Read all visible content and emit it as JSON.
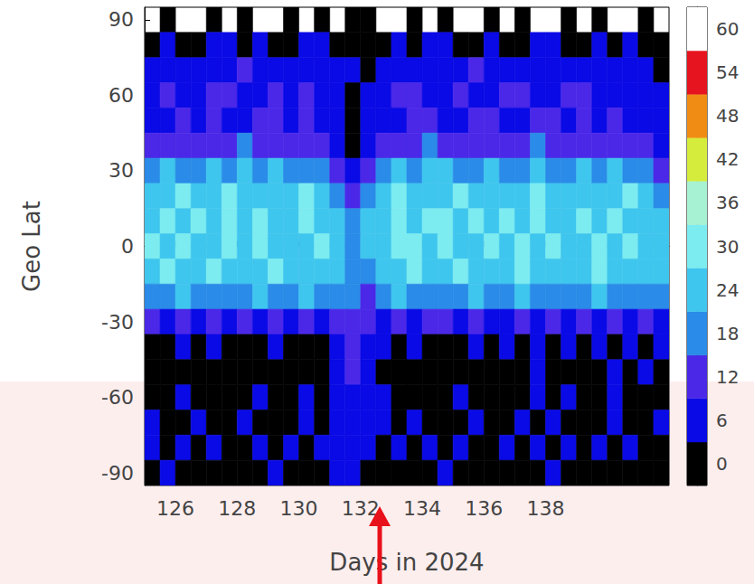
{
  "chart_data": {
    "type": "heatmap",
    "x_label": "Days in 2024",
    "y_label": "Geo Lat",
    "xlim": [
      125,
      142
    ],
    "xticks": [
      126,
      128,
      130,
      132,
      134,
      136,
      138
    ],
    "ylim": [
      -95,
      95
    ],
    "yticks": [
      -90,
      -60,
      -30,
      0,
      30,
      60,
      90
    ],
    "x": [
      125.25,
      125.75,
      126.25,
      126.75,
      127.25,
      127.75,
      128.25,
      128.75,
      129.25,
      129.75,
      130.25,
      130.75,
      131.25,
      131.75,
      132.25,
      132.75,
      133.25,
      133.75,
      134.25,
      134.75,
      135.25,
      135.75,
      136.25,
      136.75,
      137.25,
      137.75,
      138.25,
      138.75,
      139.25,
      139.75,
      140.25,
      140.75,
      141.25,
      141.75
    ],
    "lat": [
      90,
      80,
      70,
      60,
      50,
      40,
      30,
      20,
      10,
      0,
      -10,
      -20,
      -30,
      -40,
      -50,
      -60,
      -70,
      -80,
      -90
    ],
    "cells": [
      [
        null,
        0,
        null,
        null,
        0,
        null,
        0,
        null,
        null,
        0,
        null,
        0,
        null,
        0,
        0,
        null,
        null,
        0,
        null,
        0,
        null,
        null,
        0,
        null,
        0,
        null,
        null,
        0,
        null,
        0,
        null,
        null,
        0,
        null
      ],
      [
        4,
        7,
        5,
        3,
        8,
        6,
        4,
        7,
        5,
        3,
        6,
        8,
        4,
        2,
        3,
        5,
        7,
        4,
        6,
        8,
        5,
        3,
        7,
        5,
        4,
        8,
        6,
        3,
        5,
        7,
        4,
        6,
        3,
        2
      ],
      [
        9,
        11,
        8,
        10,
        7,
        9,
        12,
        8,
        10,
        9,
        7,
        11,
        9,
        6,
        5,
        8,
        10,
        9,
        11,
        8,
        10,
        12,
        9,
        8,
        10,
        11,
        9,
        8,
        10,
        9,
        11,
        8,
        7,
        5
      ],
      [
        10,
        13,
        11,
        9,
        12,
        14,
        10,
        11,
        13,
        9,
        12,
        10,
        8,
        5,
        7,
        10,
        12,
        14,
        11,
        10,
        13,
        11,
        9,
        12,
        14,
        10,
        11,
        13,
        12,
        10,
        9,
        11,
        8,
        6
      ],
      [
        11,
        9,
        13,
        10,
        12,
        11,
        9,
        14,
        12,
        10,
        13,
        11,
        9,
        4,
        8,
        11,
        10,
        13,
        15,
        11,
        9,
        12,
        14,
        10,
        11,
        13,
        12,
        10,
        14,
        11,
        13,
        10,
        9,
        7
      ],
      [
        14,
        16,
        13,
        17,
        12,
        15,
        18,
        13,
        16,
        14,
        17,
        12,
        10,
        3,
        9,
        14,
        16,
        13,
        19,
        15,
        12,
        17,
        14,
        16,
        13,
        18,
        15,
        14,
        17,
        13,
        16,
        14,
        12,
        9
      ],
      [
        20,
        25,
        18,
        22,
        26,
        19,
        24,
        21,
        27,
        18,
        23,
        20,
        16,
        8,
        13,
        22,
        26,
        19,
        24,
        28,
        21,
        18,
        25,
        22,
        20,
        26,
        19,
        23,
        27,
        20,
        24,
        21,
        18,
        15
      ],
      [
        28,
        25,
        30,
        27,
        24,
        31,
        26,
        29,
        25,
        28,
        30,
        24,
        22,
        14,
        20,
        27,
        30,
        25,
        29,
        26,
        31,
        27,
        24,
        29,
        26,
        30,
        25,
        28,
        24,
        29,
        26,
        30,
        27,
        23
      ],
      [
        26,
        31,
        24,
        30,
        27,
        32,
        25,
        30,
        28,
        26,
        31,
        27,
        24,
        20,
        25,
        29,
        32,
        27,
        30,
        31,
        26,
        33,
        28,
        30,
        27,
        31,
        29,
        26,
        32,
        28,
        30,
        27,
        29,
        25
      ],
      [
        30,
        25,
        31,
        27,
        24,
        30,
        28,
        32,
        26,
        29,
        25,
        31,
        27,
        22,
        24,
        28,
        30,
        33,
        27,
        31,
        29,
        26,
        30,
        28,
        32,
        27,
        31,
        29,
        26,
        30,
        28,
        31,
        26,
        24
      ],
      [
        27,
        30,
        25,
        29,
        31,
        26,
        28,
        24,
        30,
        27,
        29,
        25,
        26,
        21,
        23,
        29,
        27,
        31,
        28,
        25,
        30,
        27,
        29,
        26,
        31,
        28,
        25,
        29,
        27,
        30,
        26,
        28,
        27,
        25
      ],
      [
        22,
        19,
        24,
        20,
        23,
        21,
        18,
        25,
        22,
        20,
        24,
        19,
        21,
        18,
        17,
        22,
        25,
        20,
        23,
        21,
        19,
        24,
        22,
        20,
        25,
        21,
        23,
        19,
        22,
        24,
        20,
        23,
        21,
        20
      ],
      [
        12,
        6,
        13,
        9,
        14,
        7,
        12,
        10,
        14,
        6,
        12,
        9,
        13,
        15,
        12,
        10,
        13,
        7,
        12,
        14,
        8,
        13,
        11,
        6,
        13,
        10,
        14,
        7,
        12,
        10,
        13,
        8,
        12,
        11
      ],
      [
        4,
        2,
        7,
        3,
        6,
        1,
        5,
        3,
        7,
        2,
        5,
        4,
        9,
        13,
        10,
        6,
        3,
        7,
        2,
        5,
        3,
        6,
        4,
        8,
        3,
        6,
        2,
        7,
        4,
        8,
        3,
        9,
        5,
        7
      ],
      [
        1,
        2,
        0,
        3,
        1,
        0,
        2,
        1,
        3,
        0,
        2,
        1,
        7,
        12,
        9,
        3,
        1,
        2,
        0,
        4,
        1,
        2,
        0,
        3,
        1,
        7,
        0,
        2,
        4,
        1,
        8,
        2,
        6,
        3
      ],
      [
        3,
        0,
        7,
        1,
        5,
        2,
        0,
        6,
        1,
        3,
        7,
        2,
        8,
        11,
        9,
        7,
        2,
        5,
        1,
        0,
        6,
        2,
        4,
        1,
        3,
        7,
        2,
        6,
        1,
        3,
        7,
        2,
        4,
        1
      ],
      [
        6,
        2,
        4,
        7,
        1,
        3,
        6,
        2,
        5,
        1,
        7,
        3,
        9,
        10,
        8,
        6,
        2,
        7,
        3,
        5,
        1,
        6,
        2,
        4,
        7,
        3,
        6,
        1,
        5,
        2,
        7,
        4,
        3,
        6
      ],
      [
        7,
        3,
        8,
        2,
        6,
        4,
        1,
        7,
        3,
        6,
        2,
        8,
        9,
        8,
        7,
        4,
        6,
        2,
        7,
        3,
        8,
        1,
        5,
        7,
        2,
        6,
        4,
        8,
        3,
        7,
        2,
        6,
        5,
        3
      ],
      [
        3,
        6,
        2,
        4,
        1,
        5,
        3,
        2,
        6,
        1,
        4,
        3,
        6,
        7,
        5,
        2,
        4,
        1,
        3,
        6,
        2,
        4,
        1,
        3,
        5,
        2,
        6,
        1,
        3,
        4,
        2,
        5,
        1,
        3
      ]
    ],
    "colorbar": {
      "range": [
        -3,
        63
      ],
      "ticks": [
        0,
        6,
        12,
        18,
        24,
        30,
        36,
        42,
        48,
        54,
        60
      ],
      "colors": [
        "#000000",
        "#0a0ae6",
        "#4b28e8",
        "#2a8be8",
        "#3fc6ee",
        "#7cecf0",
        "#a6f2d2",
        "#d6ec3c",
        "#f08c14",
        "#e6141e",
        "#ffffff"
      ]
    }
  }
}
